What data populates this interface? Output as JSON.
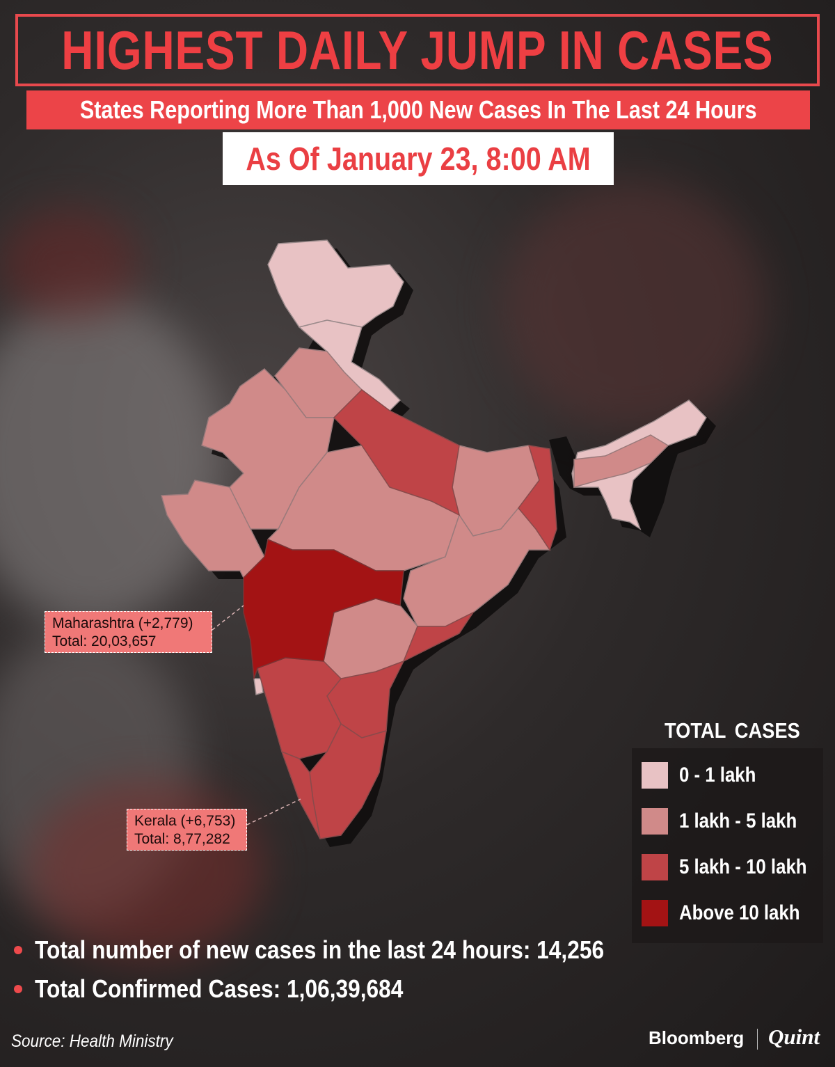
{
  "title": "HIGHEST DAILY JUMP IN CASES",
  "subtitle": "States Reporting More Than 1,000 New Cases In The Last 24 Hours",
  "date": "As Of January 23, 8:00 AM",
  "callouts": {
    "maharashtra": {
      "line1": "Maharashtra (+2,779)",
      "line2": "Total: 20,03,657"
    },
    "kerala": {
      "line1": "Kerala (+6,753)",
      "line2": "Total: 8,77,282"
    }
  },
  "legend": {
    "title": "TOTAL CASES",
    "items": [
      {
        "label": "0 - 1 lakh",
        "color": "#e8c2c4"
      },
      {
        "label": "1 lakh - 5 lakh",
        "color": "#d08a89"
      },
      {
        "label": "5 lakh - 10 lakh",
        "color": "#bf4447"
      },
      {
        "label": "Above 10 lakh",
        "color": "#a31314"
      }
    ]
  },
  "stats": [
    "Total number of new cases in the last 24 hours: 14,256",
    "Total Confirmed Cases: 1,06,39,684"
  ],
  "source": "Source: Health Ministry",
  "brand": {
    "primary": "Bloomberg",
    "secondary": "Quint"
  }
}
